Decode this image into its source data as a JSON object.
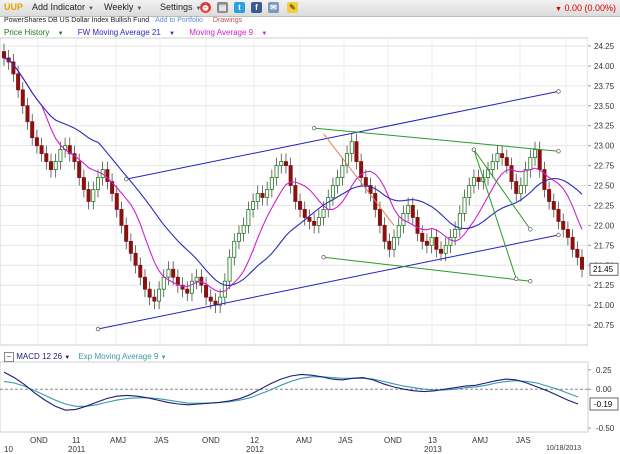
{
  "toolbar": {
    "ticker": "UUP",
    "add_indicator": "Add Indicator",
    "interval": "Weekly",
    "settings": "Settings",
    "change": "0.00 (0.00%)"
  },
  "subtitle": {
    "fund_name": "PowerShares DB US Dollar Index Bullish Fund",
    "add_to_portfolio": "Add to Portfolio",
    "drawings": "Drawings"
  },
  "legend": {
    "price": "Price History",
    "ma21": "FW Moving Average 21",
    "ma9": "Moving Average 9",
    "macd": "MACD 12 26",
    "ema9": "Exp Moving Average 9"
  },
  "colors": {
    "candle_up": "#1e7a1e",
    "candle_down": "#8b1010",
    "ma21": "#2b2bb8",
    "ma9": "#d020d0",
    "channel": "#2020c0",
    "trend_green": "#2a9a2a",
    "trend_orange": "#e08060",
    "macd": "#1c1c7a",
    "macd_signal": "#3a9aa8"
  },
  "chart_data": [
    {
      "type": "candlestick",
      "ylim": [
        20.5,
        24.35
      ],
      "y_ticks": [
        "24.25",
        "24.00",
        "23.75",
        "23.50",
        "23.25",
        "23.00",
        "22.75",
        "22.50",
        "22.25",
        "22.00",
        "21.75",
        "21.50",
        "21.25",
        "21.00",
        "20.75"
      ],
      "last_price": "21.45",
      "marker_labels": [
        "10",
        "OND",
        "11",
        "2011",
        "AMJ",
        "JAS",
        "OND",
        "12",
        "2012",
        "AMJ",
        "JAS",
        "OND",
        "13",
        "2013",
        "AMJ",
        "JAS",
        "10/18/2013"
      ],
      "close": [
        24.1,
        24.05,
        23.9,
        23.7,
        23.5,
        23.3,
        23.1,
        23.0,
        22.9,
        22.8,
        22.7,
        22.8,
        22.95,
        23.0,
        22.9,
        22.8,
        22.6,
        22.45,
        22.3,
        22.45,
        22.6,
        22.7,
        22.55,
        22.4,
        22.2,
        22.0,
        21.8,
        21.65,
        21.5,
        21.35,
        21.2,
        21.1,
        21.05,
        21.2,
        21.35,
        21.45,
        21.35,
        21.25,
        21.2,
        21.15,
        21.3,
        21.35,
        21.25,
        21.1,
        21.05,
        21.0,
        21.1,
        21.3,
        21.6,
        21.8,
        21.9,
        22.0,
        22.2,
        22.3,
        22.4,
        22.35,
        22.45,
        22.6,
        22.75,
        22.8,
        22.75,
        22.5,
        22.3,
        22.2,
        22.1,
        22.05,
        22.0,
        22.1,
        22.2,
        22.35,
        22.5,
        22.6,
        22.75,
        22.9,
        23.05,
        22.8,
        22.6,
        22.5,
        22.4,
        22.2,
        22.0,
        21.8,
        21.7,
        21.85,
        22.0,
        22.15,
        22.25,
        22.1,
        21.9,
        21.8,
        21.75,
        21.85,
        21.7,
        21.65,
        21.75,
        21.85,
        21.95,
        22.15,
        22.35,
        22.5,
        22.6,
        22.55,
        22.6,
        22.7,
        22.8,
        22.9,
        22.85,
        22.75,
        22.55,
        22.4,
        22.5,
        22.7,
        22.85,
        22.95,
        22.7,
        22.45,
        22.3,
        22.2,
        22.05,
        21.95,
        21.85,
        21.7,
        21.6,
        21.45
      ],
      "macd": {
        "ylim": [
          -0.55,
          0.35
        ],
        "y_ticks": [
          "0.25",
          "0.00",
          "-0.50"
        ],
        "last_macd": "-0.19",
        "macd": [
          0.22,
          0.15,
          0.06,
          -0.05,
          -0.14,
          -0.22,
          -0.27,
          -0.26,
          -0.22,
          -0.17,
          -0.12,
          -0.09,
          -0.08,
          -0.09,
          -0.11,
          -0.14,
          -0.17,
          -0.19,
          -0.2,
          -0.19,
          -0.18,
          -0.17,
          -0.15,
          -0.12,
          -0.07,
          0.0,
          0.07,
          0.13,
          0.17,
          0.19,
          0.18,
          0.16,
          0.13,
          0.12,
          0.14,
          0.15,
          0.12,
          0.07,
          0.03,
          0.0,
          -0.02,
          -0.03,
          -0.02,
          0.0,
          0.02,
          0.04,
          0.05,
          0.08,
          0.11,
          0.13,
          0.12,
          0.08,
          0.03,
          -0.02,
          -0.08,
          -0.14,
          -0.19
        ],
        "signal": [
          0.1,
          0.08,
          0.04,
          -0.02,
          -0.08,
          -0.14,
          -0.19,
          -0.22,
          -0.22,
          -0.2,
          -0.17,
          -0.14,
          -0.12,
          -0.11,
          -0.11,
          -0.12,
          -0.14,
          -0.16,
          -0.18,
          -0.18,
          -0.18,
          -0.17,
          -0.16,
          -0.14,
          -0.11,
          -0.06,
          -0.01,
          0.05,
          0.1,
          0.14,
          0.16,
          0.16,
          0.15,
          0.14,
          0.14,
          0.14,
          0.13,
          0.1,
          0.07,
          0.04,
          0.02,
          0.0,
          -0.01,
          -0.01,
          0.0,
          0.02,
          0.03,
          0.05,
          0.08,
          0.1,
          0.11,
          0.1,
          0.08,
          0.04,
          0.0,
          -0.05,
          -0.1
        ]
      }
    }
  ]
}
